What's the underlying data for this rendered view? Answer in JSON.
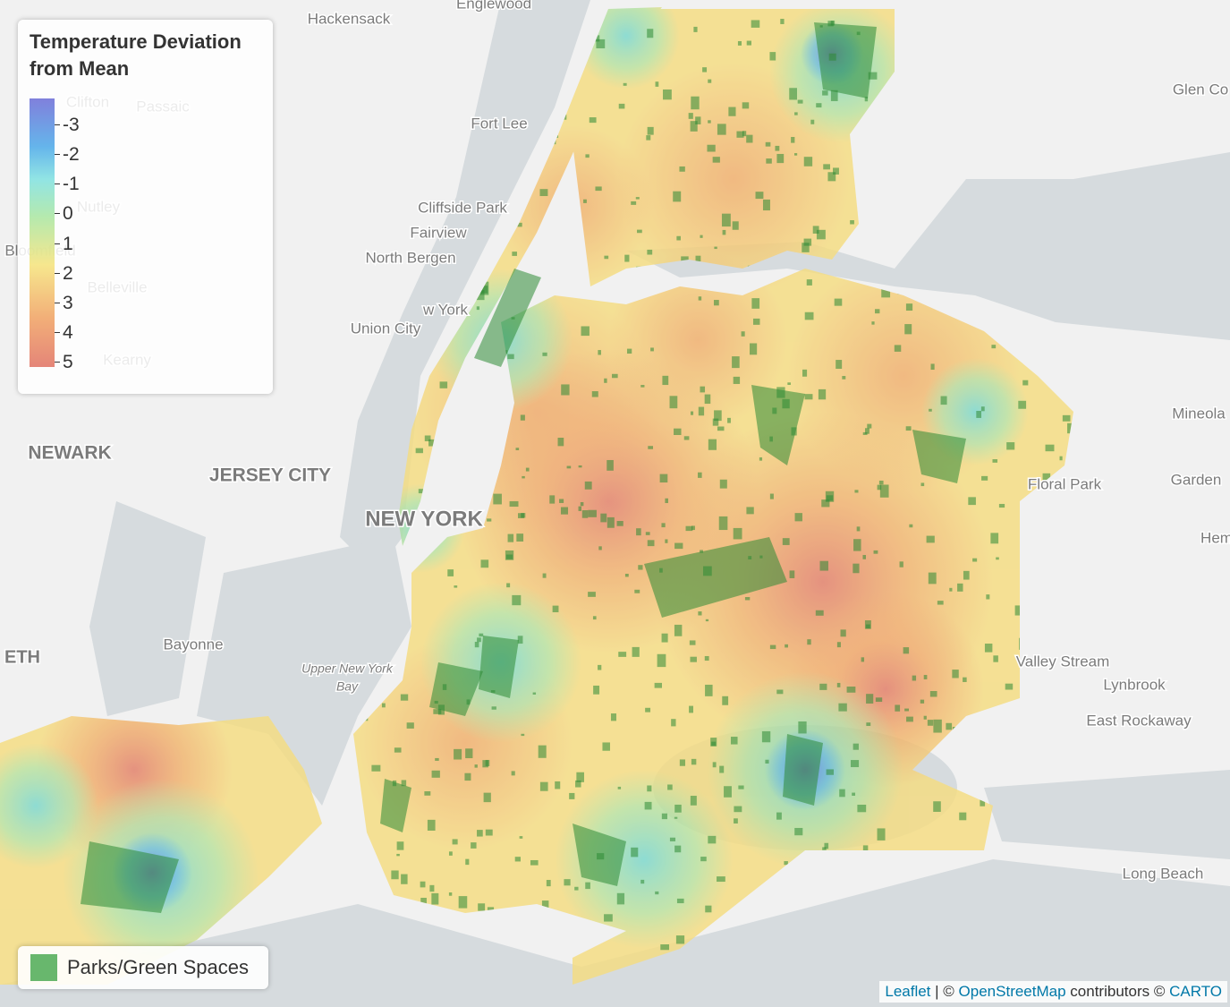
{
  "legend": {
    "title": "Temperature Deviation from Mean",
    "ticks": [
      -3,
      -2,
      -1,
      0,
      1,
      2,
      3,
      4,
      5
    ]
  },
  "layer_legend": {
    "label": "Parks/Green Spaces"
  },
  "places": [
    "Englewood",
    "Hackensack",
    "Fort Lee",
    "Cliffside Park",
    "Fairview",
    "North Bergen",
    "Union City",
    "w York",
    "Clifton",
    "Passaic",
    "Nutley",
    "Bloomfield",
    "Belleville",
    "Kearny",
    "NEWARK",
    "JERSEY CITY",
    "NEW YORK",
    "Bayonne",
    "Upper New York",
    "Bay",
    "ETH",
    "Glen Co",
    "Mineola",
    "Garden",
    "Hem",
    "Floral Park",
    "Valley Stream",
    "Lynbrook",
    "East Rockaway",
    "Long Beach"
  ],
  "attribution": {
    "leaflet": "Leaflet",
    "sep": "| ©",
    "osm": "OpenStreetMap",
    "contrib": "contributors ©",
    "carto": "CARTO"
  }
}
